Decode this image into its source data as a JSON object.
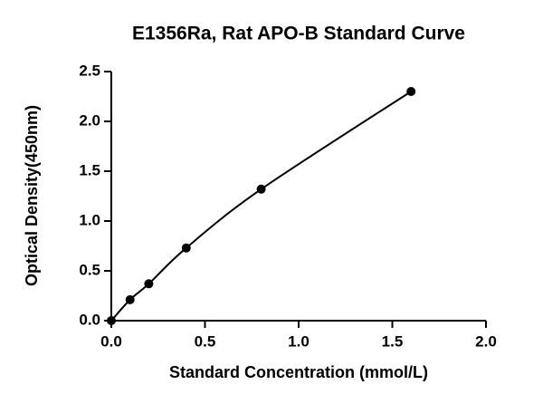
{
  "chart_data": {
    "type": "scatter",
    "title": "E1356Ra, Rat APO-B Standard Curve",
    "x_label": "Standard Concentration (mmol/L)",
    "y_label": "Optical Density(450nm)",
    "x": [
      0,
      0.1,
      0.2,
      0.4,
      0.8,
      1.6
    ],
    "values": [
      0,
      0.21,
      0.37,
      0.73,
      1.32,
      2.3
    ],
    "color": "#000000",
    "fit_line": true,
    "grid": false,
    "xlim": [
      0,
      2.0
    ],
    "ylim": [
      0,
      2.5
    ],
    "xticks": [
      {
        "value": 0,
        "label": "0.0"
      },
      0.5,
      {
        "value": 1.0,
        "label": "1.0"
      },
      1.5,
      {
        "value": 2.0,
        "label": "2.0"
      }
    ],
    "yticks": [
      {
        "value": 0,
        "label": "0.0"
      },
      0.5,
      {
        "value": 1.0,
        "label": "1.0"
      },
      1.5,
      {
        "value": 2.0,
        "label": "2.0"
      },
      2.5
    ]
  }
}
